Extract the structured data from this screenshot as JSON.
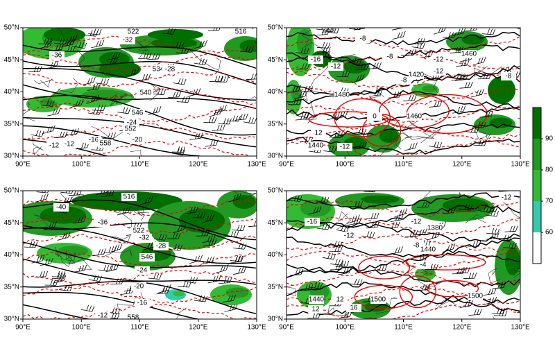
{
  "lon_labels": [
    "90°E",
    "100°E",
    "110°E",
    "120°E",
    "130°E"
  ],
  "lat_labels": [
    "50°N",
    "45°N",
    "40°N",
    "35°N",
    "30°N"
  ],
  "panels": [
    {
      "contour_labels": [
        "522",
        "516",
        "-32",
        "-36",
        "534",
        "-28",
        "540",
        "546",
        "-24",
        "552",
        "-20",
        "-16",
        "558",
        "-12",
        "-12"
      ]
    },
    {
      "contour_labels": [
        "-8",
        "-8",
        "-16",
        "-12",
        "-12",
        "-12",
        "1420",
        "-8",
        "1460",
        "-8",
        "1480",
        "1440",
        "12",
        "-12",
        "1460",
        "0"
      ]
    },
    {
      "contour_labels": [
        "-40",
        "516",
        "-36",
        "522",
        "-32",
        "-28",
        "546",
        "-24",
        "-20",
        "-16",
        "558",
        "-12"
      ]
    },
    {
      "contour_labels": [
        "-12",
        "-16",
        "-12",
        "1380",
        "-12",
        "-8",
        "1440",
        "-4",
        "1440",
        "12",
        "16",
        "1500",
        "12",
        "1500"
      ]
    }
  ],
  "colorbar": {
    "range": [
      50,
      100
    ],
    "ticks": [
      60,
      70,
      80,
      90
    ],
    "colors": [
      "#ffffff",
      "#33ccaa",
      "#33bb33",
      "#229922",
      "#006f00"
    ]
  }
}
